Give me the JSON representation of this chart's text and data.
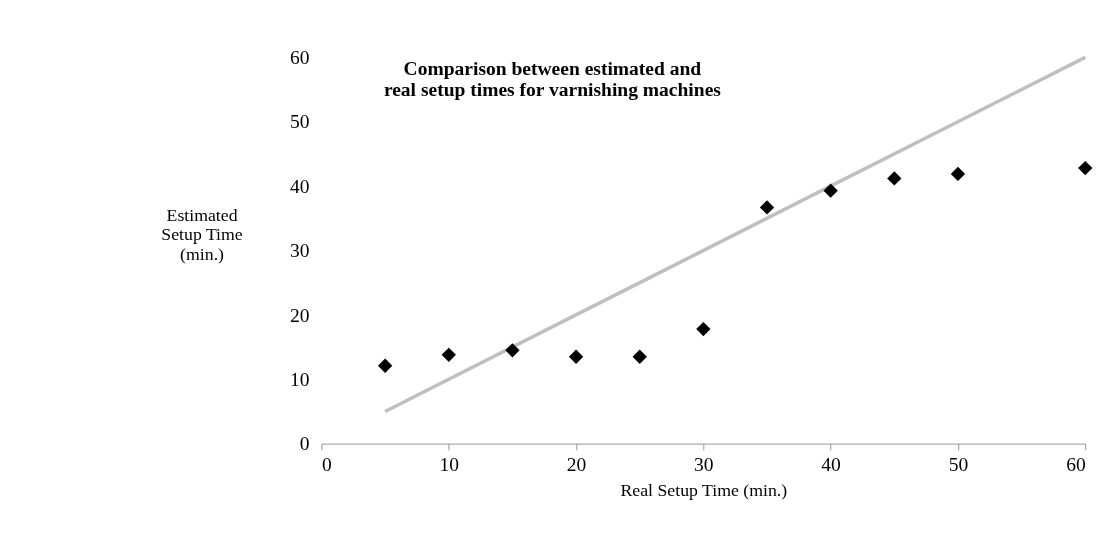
{
  "chart_data": {
    "type": "scatter",
    "title": "Comparison between estimated and\nreal setup times for varnishing machines",
    "xlabel": "Real Setup Time (min.)",
    "ylabel": "Estimated\nSetup Time\n(min.)",
    "x": [
      5,
      10,
      15,
      20,
      25,
      30,
      35,
      40,
      45,
      50,
      60
    ],
    "series": [
      {
        "color": "#000000",
        "marker": "diamond",
        "values": [
          12.1,
          13.8,
          14.5,
          13.5,
          13.5,
          17.8,
          36.7,
          39.3,
          41.2,
          41.9,
          42.8
        ]
      },
      {
        "type": "line",
        "color": "#bfbfbf",
        "x": [
          5,
          60
        ],
        "values": [
          5,
          60
        ],
        "line_style": "solid"
      }
    ],
    "xlim": [
      0,
      60
    ],
    "xticks": [
      0,
      10,
      20,
      30,
      40,
      50,
      60
    ],
    "ylim": [
      0,
      60
    ],
    "yticks": [
      0,
      10,
      20,
      30,
      40,
      50,
      60
    ],
    "grid": false
  }
}
